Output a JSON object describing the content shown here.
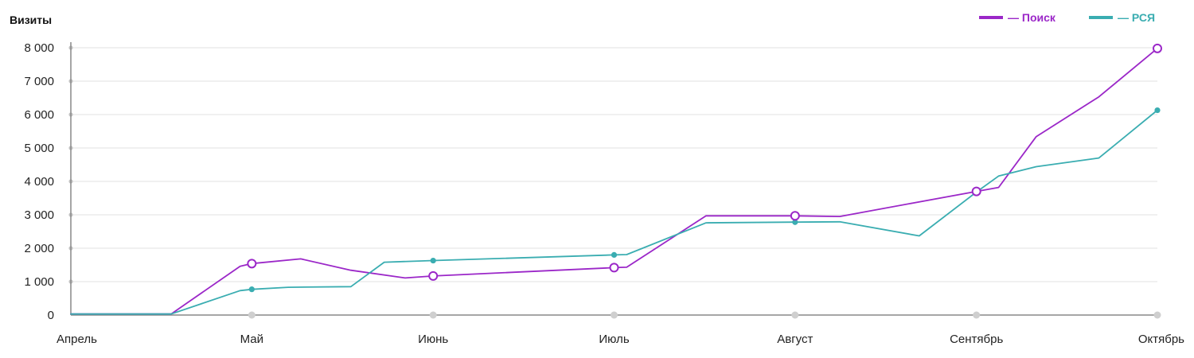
{
  "chart_data": {
    "type": "line",
    "title": "",
    "xlabel": "",
    "ylabel": "Визиты",
    "ylim": [
      0,
      8000
    ],
    "xlim": [
      0,
      26
    ],
    "grid": true,
    "legend_position": "top-right",
    "y_ticks": [
      {
        "value": 0,
        "label": "0"
      },
      {
        "value": 1000,
        "label": "1 000"
      },
      {
        "value": 2000,
        "label": "2 000"
      },
      {
        "value": 3000,
        "label": "3 000"
      },
      {
        "value": 4000,
        "label": "4 000"
      },
      {
        "value": 5000,
        "label": "5 000"
      },
      {
        "value": 6000,
        "label": "6 000"
      },
      {
        "value": 7000,
        "label": "7 000"
      },
      {
        "value": 8000,
        "label": "8 000"
      }
    ],
    "x_ticks": [
      {
        "value": 0,
        "label": "Апрель"
      },
      {
        "value": 4.33,
        "label": "Май"
      },
      {
        "value": 8.67,
        "label": "Июнь"
      },
      {
        "value": 13,
        "label": "Июль"
      },
      {
        "value": 17.33,
        "label": "Август"
      },
      {
        "value": 21.67,
        "label": "Сентябрь"
      },
      {
        "value": 26,
        "label": "Октябрь"
      }
    ],
    "series": [
      {
        "name": "— Поиск",
        "color": "#9b27c8",
        "marker": "open-circle",
        "x": [
          0,
          2.4,
          4.05,
          4.33,
          5.5,
          6.7,
          8.0,
          8.67,
          13.0,
          13.3,
          15.2,
          17.33,
          18.4,
          21.67,
          22.2,
          23.1,
          24.6,
          26.0
        ],
        "y": [
          30,
          30,
          1460,
          1540,
          1680,
          1340,
          1110,
          1170,
          1420,
          1430,
          2970,
          2970,
          2950,
          3700,
          3820,
          5340,
          6530,
          7980
        ]
      },
      {
        "name": "— РСЯ",
        "color": "#3aadb1",
        "marker": "filled-dot",
        "x": [
          0,
          2.4,
          4.05,
          4.33,
          5.2,
          6.7,
          7.5,
          8.67,
          13.0,
          13.3,
          15.2,
          17.33,
          18.4,
          20.3,
          21.67,
          22.2,
          23.1,
          24.6,
          26.0
        ],
        "y": [
          30,
          30,
          730,
          770,
          830,
          850,
          1580,
          1630,
          1800,
          1810,
          2760,
          2780,
          2790,
          2370,
          3680,
          4160,
          4440,
          4700,
          6130
        ]
      }
    ],
    "markers_at_x": [
      4.33,
      8.67,
      13.0,
      17.33,
      21.67,
      26.0
    ]
  }
}
